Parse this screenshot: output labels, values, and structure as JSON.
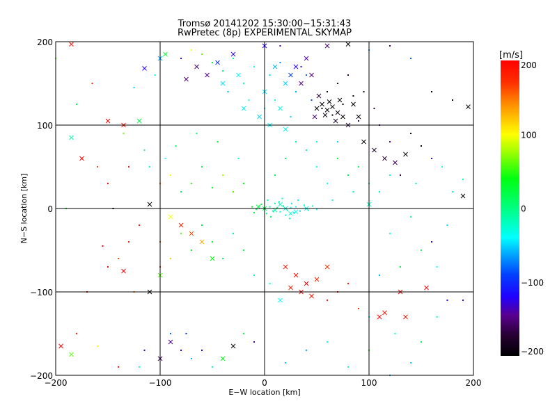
{
  "chart_data": {
    "type": "scatter",
    "title": "Tromsø 20141202 15:30:00−15:31:43",
    "subtitle": "RwPretec (8p) EXPERIMENTAL SKYMAP",
    "xlabel": "E−W location [km]",
    "ylabel": "N−S location [km]",
    "xlim": [
      -200,
      200
    ],
    "ylim": [
      -200,
      200
    ],
    "xticks": [
      -200,
      -100,
      0,
      100,
      200
    ],
    "yticks": [
      -200,
      -100,
      0,
      100,
      200
    ],
    "xtick_labels": [
      "−200",
      "−100",
      "0",
      "100",
      "200"
    ],
    "ytick_labels": [
      "−200",
      "−100",
      "0",
      "100",
      "200"
    ],
    "grid": true,
    "colorbar": {
      "label": "[m/s]",
      "range": [
        -200,
        200
      ],
      "ticks": [
        200,
        100,
        0,
        -100,
        -200
      ],
      "tick_labels": [
        "200",
        "100",
        "0",
        "−100",
        "−200"
      ],
      "colorscale": [
        [
          -200,
          "#000000"
        ],
        [
          -170,
          "#2a0038"
        ],
        [
          -145,
          "#5a0090"
        ],
        [
          -120,
          "#2000ff"
        ],
        [
          -90,
          "#0040ff"
        ],
        [
          -60,
          "#00b0ff"
        ],
        [
          -40,
          "#00ffff"
        ],
        [
          0,
          "#00ff80"
        ],
        [
          40,
          "#00ff10"
        ],
        [
          80,
          "#b0ff00"
        ],
        [
          100,
          "#ffff00"
        ],
        [
          140,
          "#ff9000"
        ],
        [
          170,
          "#ff3000"
        ],
        [
          200,
          "#ff0000"
        ]
      ]
    },
    "marker_legend": "point series: [x_km, y_km, velocity_m_s, marker(0=dot,1=cross)]",
    "points": [
      [
        0,
        0,
        0,
        0
      ],
      [
        5,
        2,
        -10,
        0
      ],
      [
        8,
        -3,
        -20,
        0
      ],
      [
        12,
        1,
        10,
        0
      ],
      [
        15,
        -4,
        -30,
        0
      ],
      [
        18,
        3,
        0,
        0
      ],
      [
        22,
        -2,
        -25,
        0
      ],
      [
        25,
        1,
        -35,
        0
      ],
      [
        28,
        -5,
        -15,
        0
      ],
      [
        30,
        2,
        -40,
        0
      ],
      [
        -5,
        3,
        20,
        0
      ],
      [
        -8,
        -1,
        10,
        0
      ],
      [
        -3,
        5,
        30,
        0
      ],
      [
        2,
        -6,
        0,
        0
      ],
      [
        10,
        6,
        -5,
        0
      ],
      [
        14,
        8,
        -20,
        0
      ],
      [
        20,
        -8,
        -30,
        0
      ],
      [
        26,
        6,
        -45,
        0
      ],
      [
        34,
        -3,
        -50,
        0
      ],
      [
        38,
        4,
        -35,
        0
      ],
      [
        42,
        -2,
        -20,
        0
      ],
      [
        46,
        3,
        -30,
        0
      ],
      [
        50,
        -1,
        -40,
        0
      ],
      [
        6,
        -10,
        15,
        0
      ],
      [
        -10,
        -5,
        30,
        0
      ],
      [
        -12,
        2,
        40,
        0
      ],
      [
        3,
        10,
        -10,
        0
      ],
      [
        17,
        12,
        -25,
        0
      ],
      [
        24,
        -12,
        -15,
        0
      ],
      [
        32,
        10,
        -30,
        0
      ],
      [
        0,
        0,
        10,
        1
      ],
      [
        10,
        -2,
        -10,
        1
      ],
      [
        20,
        0,
        -30,
        1
      ],
      [
        30,
        -4,
        -40,
        1
      ],
      [
        -6,
        2,
        20,
        1
      ],
      [
        40,
        0,
        -35,
        1
      ],
      [
        15,
        5,
        -20,
        1
      ],
      [
        25,
        -6,
        -25,
        1
      ],
      [
        20,
        150,
        -40,
        0
      ],
      [
        30,
        140,
        -60,
        0
      ],
      [
        40,
        160,
        -80,
        0
      ],
      [
        10,
        130,
        -30,
        0
      ],
      [
        0,
        120,
        -40,
        0
      ],
      [
        25,
        110,
        -50,
        0
      ],
      [
        45,
        130,
        -90,
        0
      ],
      [
        35,
        170,
        -110,
        0
      ],
      [
        15,
        175,
        -70,
        0
      ],
      [
        5,
        160,
        -50,
        0
      ],
      [
        -10,
        170,
        -30,
        0
      ],
      [
        -20,
        150,
        -20,
        0
      ],
      [
        -30,
        180,
        -10,
        0
      ],
      [
        -40,
        165,
        0,
        0
      ],
      [
        -50,
        175,
        30,
        0
      ],
      [
        -60,
        185,
        60,
        0
      ],
      [
        -70,
        190,
        100,
        0
      ],
      [
        -80,
        180,
        -130,
        0
      ],
      [
        -35,
        140,
        -60,
        0
      ],
      [
        -15,
        130,
        -40,
        0
      ],
      [
        20,
        150,
        -50,
        1
      ],
      [
        30,
        170,
        -120,
        1
      ],
      [
        40,
        180,
        -140,
        1
      ],
      [
        25,
        160,
        -90,
        1
      ],
      [
        10,
        170,
        -60,
        1
      ],
      [
        -30,
        185,
        -130,
        1
      ],
      [
        -45,
        175,
        -100,
        1
      ],
      [
        -25,
        160,
        -40,
        1
      ],
      [
        0,
        140,
        -45,
        1
      ],
      [
        15,
        120,
        -35,
        1
      ],
      [
        5,
        100,
        -40,
        1
      ],
      [
        -5,
        110,
        -50,
        1
      ],
      [
        20,
        95,
        -30,
        1
      ],
      [
        -20,
        120,
        -40,
        1
      ],
      [
        -40,
        150,
        -50,
        1
      ],
      [
        -55,
        160,
        -140,
        1
      ],
      [
        -65,
        170,
        -150,
        1
      ],
      [
        -75,
        155,
        -150,
        1
      ],
      [
        35,
        150,
        -140,
        1
      ],
      [
        45,
        160,
        -150,
        1
      ],
      [
        50,
        120,
        -200,
        1
      ],
      [
        55,
        125,
        -200,
        1
      ],
      [
        60,
        118,
        -195,
        1
      ],
      [
        65,
        122,
        -200,
        1
      ],
      [
        70,
        115,
        -190,
        1
      ],
      [
        75,
        110,
        -200,
        1
      ],
      [
        62,
        128,
        -200,
        1
      ],
      [
        58,
        112,
        -190,
        1
      ],
      [
        68,
        105,
        -180,
        1
      ],
      [
        80,
        100,
        -170,
        1
      ],
      [
        85,
        125,
        -200,
        1
      ],
      [
        90,
        110,
        -190,
        1
      ],
      [
        52,
        135,
        -170,
        1
      ],
      [
        72,
        130,
        -200,
        1
      ],
      [
        48,
        110,
        -150,
        1
      ],
      [
        95,
        80,
        -200,
        1
      ],
      [
        105,
        70,
        -180,
        1
      ],
      [
        115,
        60,
        -170,
        1
      ],
      [
        125,
        55,
        -160,
        1
      ],
      [
        135,
        65,
        -200,
        1
      ],
      [
        55,
        120,
        -200,
        0
      ],
      [
        65,
        112,
        -200,
        0
      ],
      [
        75,
        125,
        -190,
        0
      ],
      [
        85,
        135,
        -200,
        0
      ],
      [
        95,
        140,
        -180,
        0
      ],
      [
        105,
        120,
        -170,
        0
      ],
      [
        60,
        140,
        -190,
        0
      ],
      [
        70,
        150,
        -180,
        0
      ],
      [
        80,
        160,
        -170,
        0
      ],
      [
        90,
        105,
        -160,
        0
      ],
      [
        110,
        100,
        -150,
        0
      ],
      [
        120,
        80,
        -140,
        0
      ],
      [
        130,
        40,
        -160,
        0
      ],
      [
        140,
        90,
        -190,
        0
      ],
      [
        150,
        75,
        -200,
        0
      ],
      [
        160,
        60,
        -130,
        0
      ],
      [
        170,
        50,
        -40,
        0
      ],
      [
        180,
        20,
        -30,
        0
      ],
      [
        190,
        35,
        -20,
        0
      ],
      [
        145,
        30,
        -10,
        0
      ],
      [
        120,
        40,
        -30,
        0
      ],
      [
        110,
        20,
        -20,
        0
      ],
      [
        100,
        30,
        -10,
        0
      ],
      [
        90,
        50,
        10,
        0
      ],
      [
        80,
        40,
        20,
        0
      ],
      [
        70,
        60,
        30,
        0
      ],
      [
        60,
        30,
        -40,
        0
      ],
      [
        50,
        50,
        -30,
        0
      ],
      [
        40,
        70,
        0,
        0
      ],
      [
        30,
        80,
        -20,
        0
      ],
      [
        20,
        60,
        10,
        0
      ],
      [
        10,
        40,
        20,
        0
      ],
      [
        50,
        80,
        -40,
        0
      ],
      [
        70,
        80,
        -50,
        0
      ],
      [
        85,
        20,
        -10,
        0
      ],
      [
        65,
        10,
        -30,
        0
      ],
      [
        100,
        5,
        -20,
        1
      ],
      [
        120,
        -30,
        -30,
        0
      ],
      [
        140,
        -10,
        -20,
        0
      ],
      [
        160,
        -40,
        -120,
        0
      ],
      [
        -20,
        30,
        40,
        0
      ],
      [
        -30,
        20,
        60,
        0
      ],
      [
        -40,
        40,
        80,
        0
      ],
      [
        -50,
        25,
        30,
        0
      ],
      [
        -60,
        50,
        20,
        0
      ],
      [
        -70,
        30,
        50,
        0
      ],
      [
        -80,
        20,
        10,
        0
      ],
      [
        -90,
        40,
        100,
        0
      ],
      [
        -100,
        30,
        150,
        0
      ],
      [
        -110,
        50,
        -10,
        0
      ],
      [
        -25,
        60,
        -20,
        0
      ],
      [
        -45,
        80,
        30,
        0
      ],
      [
        -65,
        90,
        10,
        0
      ],
      [
        -85,
        75,
        20,
        0
      ],
      [
        -95,
        60,
        -40,
        0
      ],
      [
        -115,
        70,
        0,
        0
      ],
      [
        -130,
        50,
        180,
        0
      ],
      [
        -150,
        30,
        190,
        0
      ],
      [
        -160,
        50,
        160,
        0
      ],
      [
        -175,
        60,
        200,
        1
      ],
      [
        -150,
        105,
        200,
        1
      ],
      [
        -135,
        100,
        190,
        1
      ],
      [
        -185,
        85,
        -10,
        1
      ],
      [
        -110,
        5,
        -200,
        1
      ],
      [
        -190,
        0,
        40,
        0
      ],
      [
        -145,
        0,
        -200,
        0
      ],
      [
        -120,
        -20,
        190,
        0
      ],
      [
        -130,
        -40,
        180,
        0
      ],
      [
        -140,
        -60,
        160,
        0
      ],
      [
        -155,
        -45,
        200,
        0
      ],
      [
        -100,
        -40,
        150,
        0
      ],
      [
        -90,
        -60,
        120,
        0
      ],
      [
        -80,
        -30,
        60,
        0
      ],
      [
        -70,
        -50,
        40,
        0
      ],
      [
        -60,
        -20,
        20,
        0
      ],
      [
        -50,
        -40,
        30,
        0
      ],
      [
        -40,
        -60,
        0,
        0
      ],
      [
        -30,
        -30,
        -10,
        0
      ],
      [
        -20,
        -50,
        10,
        0
      ],
      [
        -10,
        -80,
        -20,
        0
      ],
      [
        -60,
        -40,
        130,
        1
      ],
      [
        -70,
        -30,
        160,
        1
      ],
      [
        -80,
        -20,
        180,
        1
      ],
      [
        -90,
        -10,
        100,
        1
      ],
      [
        -50,
        -60,
        40,
        1
      ],
      [
        -100,
        -80,
        60,
        1
      ],
      [
        -110,
        -100,
        -200,
        1
      ],
      [
        -135,
        -75,
        200,
        1
      ],
      [
        -150,
        -70,
        190,
        0
      ],
      [
        -100,
        -70,
        170,
        0
      ],
      [
        20,
        -70,
        180,
        1
      ],
      [
        30,
        -80,
        190,
        1
      ],
      [
        40,
        -90,
        200,
        1
      ],
      [
        50,
        -85,
        180,
        1
      ],
      [
        60,
        -70,
        170,
        1
      ],
      [
        35,
        -100,
        200,
        1
      ],
      [
        45,
        -105,
        190,
        1
      ],
      [
        25,
        -95,
        180,
        1
      ],
      [
        15,
        -110,
        -40,
        1
      ],
      [
        5,
        -90,
        -30,
        0
      ],
      [
        60,
        -110,
        180,
        0
      ],
      [
        70,
        -100,
        200,
        0
      ],
      [
        80,
        -90,
        190,
        0
      ],
      [
        90,
        -120,
        170,
        0
      ],
      [
        100,
        -130,
        -30,
        0
      ],
      [
        110,
        -130,
        200,
        1
      ],
      [
        115,
        -125,
        190,
        1
      ],
      [
        130,
        -100,
        200,
        1
      ],
      [
        135,
        -130,
        190,
        1
      ],
      [
        155,
        -95,
        200,
        1
      ],
      [
        110,
        -80,
        -60,
        0
      ],
      [
        130,
        -70,
        30,
        0
      ],
      [
        150,
        -50,
        20,
        0
      ],
      [
        175,
        -110,
        -120,
        0
      ],
      [
        125,
        -150,
        -20,
        0
      ],
      [
        100,
        -170,
        30,
        0
      ],
      [
        80,
        -190,
        -30,
        0
      ],
      [
        60,
        -160,
        -40,
        0
      ],
      [
        40,
        -170,
        -60,
        0
      ],
      [
        20,
        -185,
        -50,
        0
      ],
      [
        -10,
        -160,
        -140,
        0
      ],
      [
        -20,
        -150,
        20,
        0
      ],
      [
        -30,
        -165,
        -200,
        1
      ],
      [
        -40,
        -180,
        40,
        1
      ],
      [
        -60,
        -170,
        -130,
        0
      ],
      [
        -70,
        -180,
        -60,
        0
      ],
      [
        -80,
        -170,
        -120,
        0
      ],
      [
        -90,
        -150,
        -80,
        0
      ],
      [
        -100,
        -180,
        -160,
        1
      ],
      [
        -115,
        -170,
        -130,
        0
      ],
      [
        -90,
        -160,
        -150,
        1
      ],
      [
        -75,
        -150,
        -100,
        0
      ],
      [
        -50,
        -190,
        0,
        0
      ],
      [
        -120,
        -190,
        -20,
        0
      ],
      [
        -140,
        -190,
        190,
        0
      ],
      [
        -160,
        -165,
        100,
        0
      ],
      [
        -185,
        -175,
        60,
        1
      ],
      [
        -195,
        -165,
        200,
        1
      ],
      [
        -180,
        -150,
        180,
        0
      ],
      [
        -170,
        -100,
        190,
        0
      ],
      [
        -120,
        105,
        20,
        1
      ],
      [
        -100,
        180,
        -60,
        1
      ],
      [
        -115,
        168,
        -120,
        1
      ],
      [
        -125,
        145,
        -50,
        0
      ],
      [
        -105,
        160,
        -30,
        0
      ],
      [
        -95,
        185,
        30,
        1
      ],
      [
        -200,
        180,
        60,
        0
      ],
      [
        -185,
        197,
        190,
        1
      ],
      [
        -180,
        125,
        20,
        0
      ],
      [
        -165,
        150,
        180,
        0
      ],
      [
        -135,
        90,
        60,
        0
      ],
      [
        -125,
        -100,
        150,
        0
      ],
      [
        0,
        195,
        -120,
        1
      ],
      [
        15,
        195,
        -140,
        0
      ],
      [
        60,
        195,
        -160,
        1
      ],
      [
        80,
        197,
        -200,
        1
      ],
      [
        100,
        190,
        -60,
        0
      ],
      [
        120,
        195,
        -150,
        0
      ],
      [
        140,
        180,
        -80,
        0
      ],
      [
        160,
        140,
        -200,
        0
      ],
      [
        180,
        130,
        -200,
        0
      ],
      [
        195,
        122,
        -200,
        1
      ],
      [
        175,
        -20,
        -50,
        0
      ],
      [
        190,
        15,
        -200,
        1
      ],
      [
        165,
        -70,
        -40,
        0
      ],
      [
        190,
        -110,
        -130,
        0
      ],
      [
        165,
        -130,
        -20,
        0
      ],
      [
        150,
        -160,
        20,
        0
      ],
      [
        140,
        -185,
        -50,
        0
      ],
      [
        120,
        -200,
        -60,
        0
      ]
    ]
  }
}
